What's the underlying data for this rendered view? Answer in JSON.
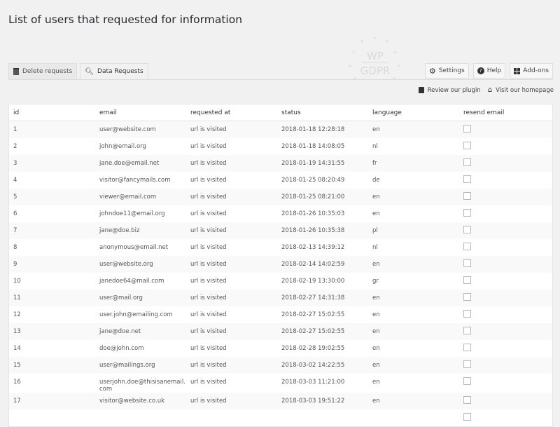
{
  "page": {
    "title": "List of users that requested for information"
  },
  "logo": {
    "text_top": "WP",
    "text_bottom": "GDPR"
  },
  "tabs": [
    {
      "label": "Delete requests",
      "icon": "trash-icon"
    },
    {
      "label": "Data Requests",
      "icon": "search-icon",
      "active": true
    }
  ],
  "right_buttons": [
    {
      "label": "Settings",
      "icon": "gear-icon"
    },
    {
      "label": "Help",
      "icon": "help-icon"
    },
    {
      "label": "Add-ons",
      "icon": "grid-icon"
    }
  ],
  "links": [
    {
      "label": "Review our plugin",
      "icon": "thumbs-icon"
    },
    {
      "label": "Visit our homepage",
      "icon": "home-icon"
    }
  ],
  "table": {
    "headers": [
      "id",
      "email",
      "requested at",
      "status",
      "language",
      "resend email"
    ],
    "rows": [
      [
        "1",
        "user@website.com",
        "url is visited",
        "2018-01-18 12:28:18",
        "en"
      ],
      [
        "2",
        "john@email.org",
        "url is visited",
        "2018-01-18 14:08:05",
        "nl"
      ],
      [
        "3",
        "jane.doe@email.net",
        "url is visited",
        "2018-01-19 14:31:55",
        "fr"
      ],
      [
        "4",
        "visitor@fancymails.com",
        "url is visited",
        "2018-01-25 08:20:49",
        "de"
      ],
      [
        "5",
        "viewer@email.com",
        "url is visited",
        "2018-01-25 08:21:00",
        "en"
      ],
      [
        "6",
        "johndoe11@email.org",
        "url is visited",
        "2018-01-26 10:35:03",
        "en"
      ],
      [
        "7",
        "jane@doe.biz",
        "url is visited",
        "2018-01-26 10:35:38",
        "pl"
      ],
      [
        "8",
        "anonymous@email.net",
        "url is visited",
        "2018-02-13 14:39:12",
        "nl"
      ],
      [
        "9",
        "user@website.org",
        "url is visited",
        "2018-02-14 14:02:59",
        "en"
      ],
      [
        "10",
        "janedoe64@mail.com",
        "url is visited",
        "2018-02-19 13:30:00",
        "gr"
      ],
      [
        "11",
        "user@mail.org",
        "url is visited",
        "2018-02-27 14:31:38",
        "en"
      ],
      [
        "12",
        "user.john@emailing.com",
        "url is visited",
        "2018-02-27 15:02:55",
        "en"
      ],
      [
        "13",
        "jane@doe.net",
        "url is visited",
        "2018-02-27 15:02:55",
        "en"
      ],
      [
        "14",
        "doe@john.com",
        "url is visited",
        "2018-02-28 19:02:55",
        "en"
      ],
      [
        "15",
        "user@mailings.org",
        "url is visited",
        "2018-03-02 14:22:55",
        "en"
      ],
      [
        "16",
        "userjohn.doe@thisisanemail.com",
        "url is visited",
        "2018-03-03 11:21:00",
        "en"
      ],
      [
        "17",
        "visitor@website.co.uk",
        "url is visited",
        "2018-03-03 19:51:22",
        "en"
      ],
      [
        "",
        "",
        "",
        "",
        ""
      ]
    ]
  }
}
